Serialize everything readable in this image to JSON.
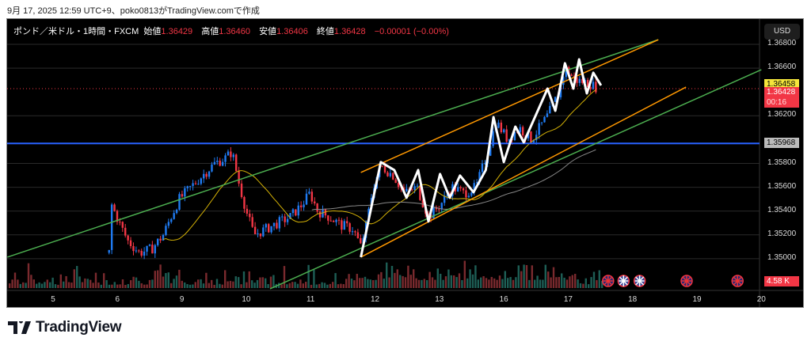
{
  "caption": "9月 17, 2025 12:59 UTC+9、poko0813がTradingView.comで作成",
  "legend": {
    "symbol": "ポンド／米ドル・1時間・FXCM",
    "open_label": "始値",
    "open": "1.36429",
    "high_label": "高値",
    "high": "1.36460",
    "low_label": "安値",
    "low": "1.36406",
    "close_label": "終値",
    "close": "1.36428",
    "change": "−0.00001 (−0.00%)"
  },
  "currency": "USD",
  "price_axis": [
    "1.36800",
    "1.36600",
    "1.36200",
    "1.35800",
    "1.35600",
    "1.35400",
    "1.35200",
    "1.35000"
  ],
  "tags": {
    "yellow": "1.36458",
    "last": "1.36428",
    "countdown": "00:16",
    "hline": "1.35968",
    "volume": "4.58 K"
  },
  "time_axis": [
    "5",
    "6",
    "9",
    "10",
    "11",
    "12",
    "13",
    "16",
    "17",
    "18",
    "19",
    "20"
  ],
  "colors": {
    "up": "#1f7bf2",
    "down": "#f23645",
    "vol_up": "#1d5e55",
    "vol_down": "#7a2a2e",
    "green": "#4caf50",
    "orange": "#ff9800",
    "blue": "#2962ff",
    "sma_fast": "#d4b106",
    "sma_slow": "#888888"
  },
  "chart_data": {
    "type": "candlestick",
    "title": "GBP/USD 1H FXCM",
    "ylim": [
      1.3488,
      1.3696
    ],
    "xlim": [
      -0.72,
      11.0
    ],
    "price_path": [
      [
        0.87,
        1.3505
      ],
      [
        0.91,
        1.3545
      ],
      [
        1.03,
        1.353
      ],
      [
        1.16,
        1.3515
      ],
      [
        1.34,
        1.3505
      ],
      [
        1.53,
        1.3508
      ],
      [
        1.71,
        1.352
      ],
      [
        1.83,
        1.3535
      ],
      [
        1.96,
        1.355
      ],
      [
        2.14,
        1.356
      ],
      [
        2.32,
        1.357
      ],
      [
        2.51,
        1.358
      ],
      [
        2.69,
        1.3585
      ],
      [
        2.78,
        1.359
      ],
      [
        2.88,
        1.3565
      ],
      [
        3.0,
        1.354
      ],
      [
        3.12,
        1.352
      ],
      [
        3.31,
        1.3525
      ],
      [
        3.49,
        1.353
      ],
      [
        3.68,
        1.3535
      ],
      [
        3.86,
        1.3545
      ],
      [
        3.99,
        1.3555
      ],
      [
        4.11,
        1.354
      ],
      [
        4.29,
        1.3535
      ],
      [
        4.48,
        1.3528
      ],
      [
        4.66,
        1.3525
      ],
      [
        4.78,
        1.351
      ],
      [
        4.87,
        1.353
      ],
      [
        4.97,
        1.356
      ],
      [
        5.09,
        1.3578
      ],
      [
        5.28,
        1.357
      ],
      [
        5.46,
        1.3555
      ],
      [
        5.65,
        1.356
      ],
      [
        5.83,
        1.3535
      ],
      [
        6.01,
        1.3545
      ],
      [
        6.2,
        1.356
      ],
      [
        6.38,
        1.3555
      ],
      [
        6.57,
        1.356
      ],
      [
        6.75,
        1.359
      ],
      [
        6.88,
        1.3615
      ],
      [
        7.06,
        1.36
      ],
      [
        7.24,
        1.361
      ],
      [
        7.43,
        1.36
      ],
      [
        7.68,
        1.362
      ],
      [
        7.86,
        1.364
      ],
      [
        7.95,
        1.366
      ],
      [
        8.11,
        1.365
      ],
      [
        8.29,
        1.3648
      ],
      [
        8.47,
        1.3643
      ]
    ],
    "trendlines": [
      {
        "color": "green",
        "p1": [
          -0.71,
          1.35013
        ],
        "p2": [
          9.4,
          1.36839
        ]
      },
      {
        "color": "green",
        "p1": [
          3.37,
          1.34747
        ],
        "p2": [
          11.0,
          1.36587
        ]
      },
      {
        "color": "orange",
        "p1": [
          4.78,
          1.35724
        ],
        "p2": [
          9.4,
          1.36839
        ]
      },
      {
        "color": "orange",
        "p1": [
          4.78,
          1.35013
        ],
        "p2": [
          9.83,
          1.36441
        ]
      }
    ],
    "hline": 1.35968,
    "last_price": 1.36428,
    "zigzag": [
      [
        4.78,
        1.35013
      ],
      [
        5.09,
        1.35811
      ],
      [
        5.3,
        1.35744
      ],
      [
        5.49,
        1.35512
      ],
      [
        5.67,
        1.35744
      ],
      [
        5.83,
        1.35313
      ],
      [
        6.01,
        1.35711
      ],
      [
        6.16,
        1.35512
      ],
      [
        6.32,
        1.35698
      ],
      [
        6.53,
        1.35558
      ],
      [
        6.72,
        1.35744
      ],
      [
        6.84,
        1.36189
      ],
      [
        7.0,
        1.35811
      ],
      [
        7.18,
        1.36109
      ],
      [
        7.31,
        1.35977
      ],
      [
        7.68,
        1.36428
      ],
      [
        7.8,
        1.36242
      ],
      [
        7.95,
        1.36641
      ],
      [
        8.08,
        1.36428
      ],
      [
        8.17,
        1.36674
      ],
      [
        8.29,
        1.36388
      ],
      [
        8.39,
        1.36561
      ],
      [
        8.51,
        1.36455
      ]
    ],
    "events": [
      {
        "t": 8.62,
        "flag": "uk"
      },
      {
        "t": 8.86,
        "flag": "us"
      },
      {
        "t": 9.11,
        "flag": "us"
      },
      {
        "t": 9.84,
        "flag": "uk"
      },
      {
        "t": 10.63,
        "flag": "uk"
      }
    ]
  }
}
